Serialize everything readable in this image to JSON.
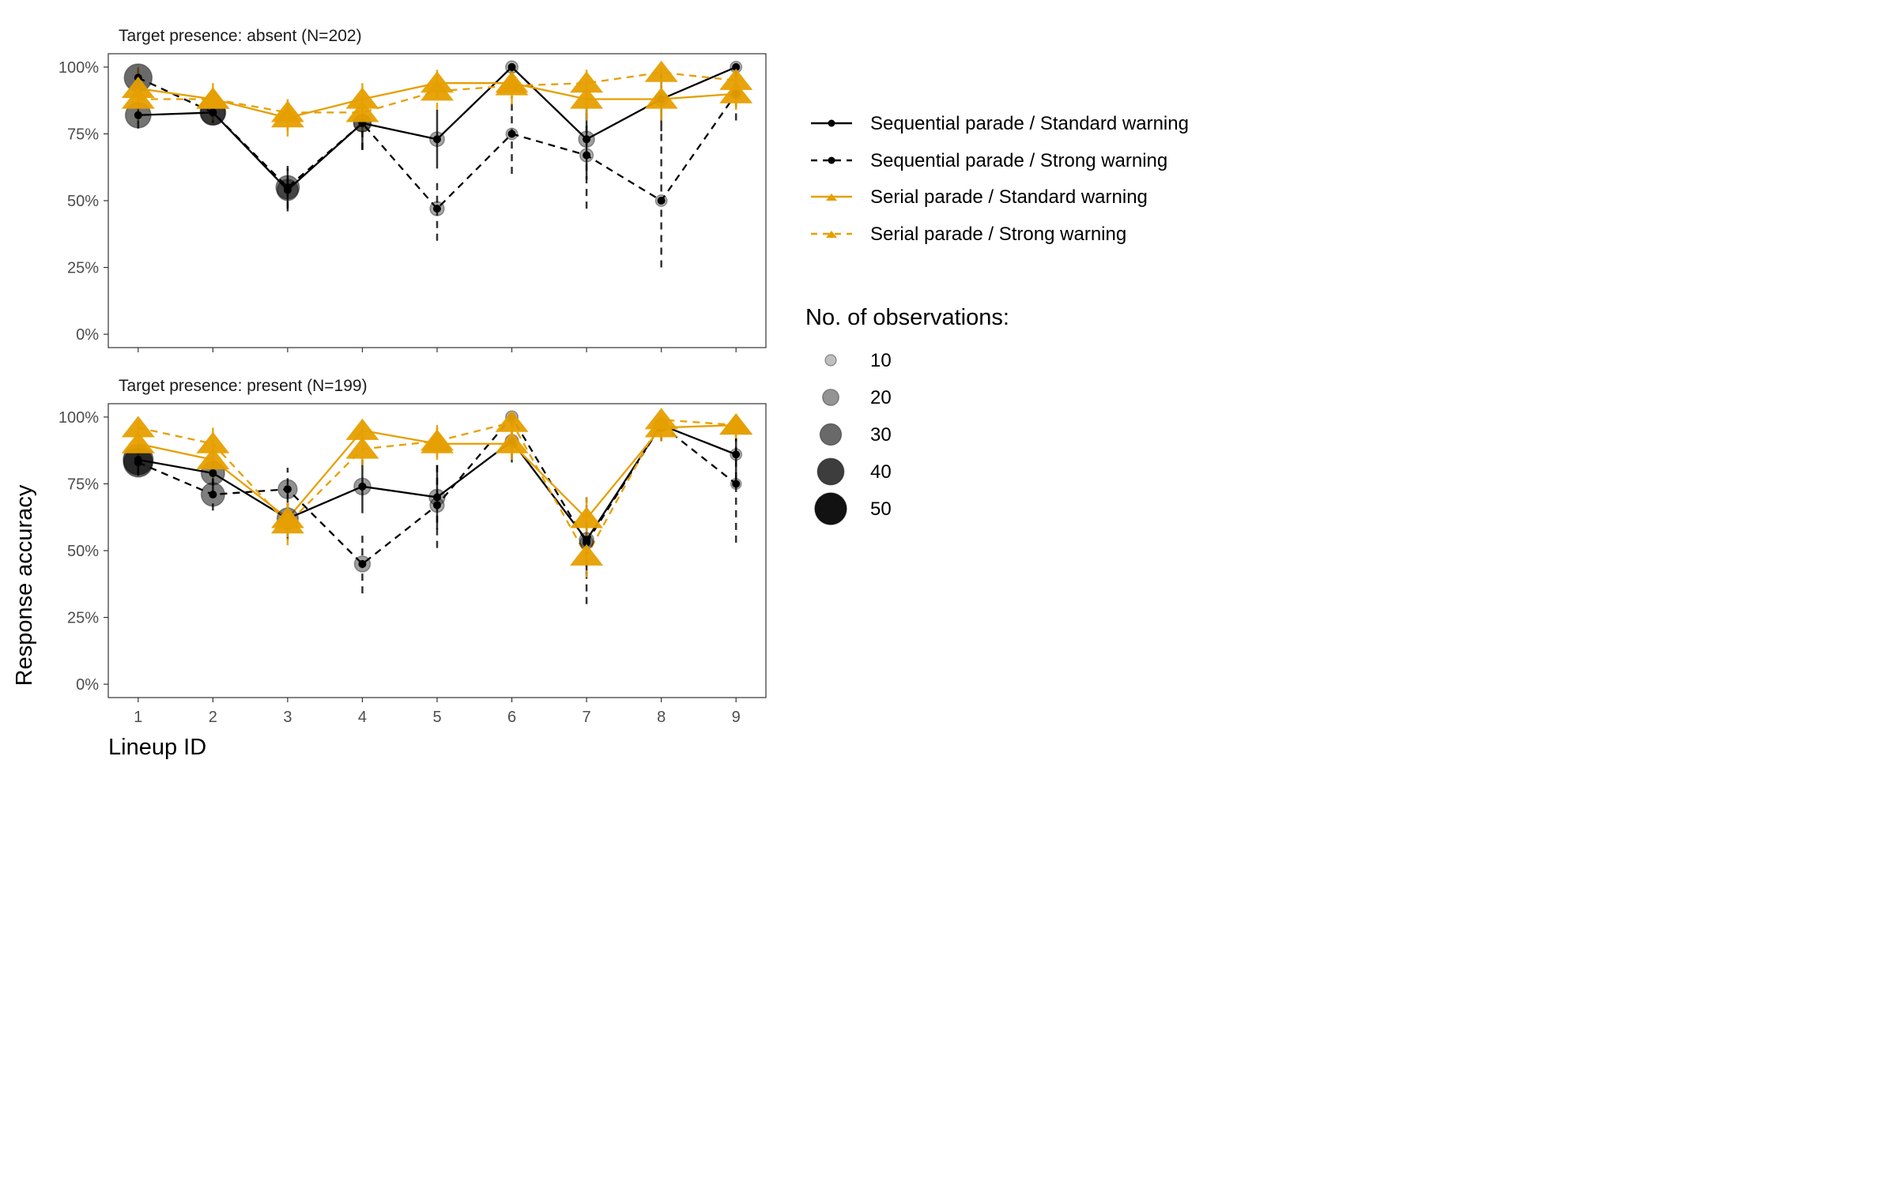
{
  "chart_data": {
    "type": "line",
    "ylabel": "Response accuracy",
    "xlabel": "Lineup ID",
    "x": [
      1,
      2,
      3,
      4,
      5,
      6,
      7,
      8,
      9
    ],
    "ylim": [
      0,
      1.05
    ],
    "yticks": [
      0,
      0.25,
      0.5,
      0.75,
      1.0
    ],
    "ytick_labels": [
      "0%",
      "25%",
      "50%",
      "75%",
      "100%"
    ],
    "xtick_labels": [
      "1",
      "2",
      "3",
      "4",
      "5",
      "6",
      "7",
      "8",
      "9"
    ],
    "grid": false,
    "colors": {
      "sequential": "#000000",
      "serial": "#E69F00"
    },
    "legend": {
      "placement": "right",
      "series_items": [
        {
          "label": "Sequential parade / Standard warning"
        },
        {
          "label": "Sequential parade / Strong warning"
        },
        {
          "label": "Serial parade / Standard warning"
        },
        {
          "label": "Serial parade / Strong warning"
        }
      ],
      "size_title": "No. of observations:",
      "size_items": [
        {
          "label": "10",
          "value": 10
        },
        {
          "label": "20",
          "value": 20
        },
        {
          "label": "30",
          "value": 30
        },
        {
          "label": "40",
          "value": 40
        },
        {
          "label": "50",
          "value": 50
        }
      ]
    },
    "panels": [
      {
        "title": "Target presence: absent (N=202)",
        "series": [
          {
            "name": "Sequential parade / Standard warning",
            "shape": "circle",
            "linestyle": "solid",
            "color": "#000000",
            "y": [
              0.82,
              0.83,
              0.54,
              0.79,
              0.73,
              1.0,
              0.73,
              0.88,
              1.0
            ],
            "n": [
              40,
              38,
              30,
              22,
              15,
              10,
              18,
              12,
              8
            ],
            "err": [
              [
                0.77,
                0.87
              ],
              [
                0.8,
                0.87
              ],
              [
                0.46,
                0.62
              ],
              [
                0.69,
                0.88
              ],
              [
                0.62,
                0.84
              ],
              [
                0.97,
                1.0
              ],
              [
                0.58,
                0.86
              ],
              [
                0.76,
                0.99
              ],
              [
                0.96,
                1.0
              ]
            ]
          },
          {
            "name": "Sequential parade / Strong warning",
            "shape": "circle",
            "linestyle": "dashed",
            "color": "#000000",
            "y": [
              0.96,
              0.83,
              0.55,
              0.79,
              0.47,
              0.75,
              0.67,
              0.5,
              0.9
            ],
            "n": [
              45,
              40,
              35,
              20,
              14,
              8,
              12,
              8,
              6
            ],
            "err": [
              [
                0.92,
                0.99
              ],
              [
                0.79,
                0.87
              ],
              [
                0.47,
                0.63
              ],
              [
                0.69,
                0.89
              ],
              [
                0.35,
                0.58
              ],
              [
                0.6,
                0.89
              ],
              [
                0.47,
                0.84
              ],
              [
                0.25,
                0.75
              ],
              [
                0.8,
                0.99
              ]
            ]
          },
          {
            "name": "Serial parade / Standard warning",
            "shape": "triangle",
            "linestyle": "solid",
            "color": "#E69F00",
            "y": [
              0.92,
              0.88,
              0.81,
              0.88,
              0.94,
              0.94,
              0.88,
              0.88,
              0.9
            ],
            "n": [
              50,
              50,
              50,
              50,
              50,
              50,
              50,
              50,
              50
            ],
            "err": [
              [
                0.84,
                1.0
              ],
              [
                0.8,
                0.94
              ],
              [
                0.74,
                0.86
              ],
              [
                0.8,
                0.94
              ],
              [
                0.88,
                0.99
              ],
              [
                0.88,
                0.99
              ],
              [
                0.8,
                0.94
              ],
              [
                0.8,
                0.94
              ],
              [
                0.84,
                0.96
              ]
            ]
          },
          {
            "name": "Serial parade / Strong warning",
            "shape": "triangle",
            "linestyle": "dashed",
            "color": "#E69F00",
            "y": [
              0.88,
              0.88,
              0.83,
              0.83,
              0.91,
              0.93,
              0.94,
              0.98,
              0.95
            ],
            "n": [
              50,
              50,
              50,
              50,
              50,
              50,
              50,
              50,
              50
            ],
            "err": [
              [
                0.8,
                0.94
              ],
              [
                0.8,
                0.94
              ],
              [
                0.76,
                0.88
              ],
              [
                0.76,
                0.88
              ],
              [
                0.84,
                0.96
              ],
              [
                0.86,
                0.98
              ],
              [
                0.88,
                0.99
              ],
              [
                0.93,
                1.0
              ],
              [
                0.89,
                1.0
              ]
            ]
          }
        ]
      },
      {
        "title": "Target presence: present (N=199)",
        "series": [
          {
            "name": "Sequential parade / Standard warning",
            "shape": "circle",
            "linestyle": "solid",
            "color": "#000000",
            "y": [
              0.84,
              0.79,
              0.62,
              0.74,
              0.7,
              0.91,
              0.54,
              0.97,
              0.86
            ],
            "n": [
              50,
              35,
              30,
              20,
              18,
              12,
              15,
              10,
              8
            ],
            "err": [
              [
                0.79,
                0.89
              ],
              [
                0.72,
                0.86
              ],
              [
                0.54,
                0.71
              ],
              [
                0.64,
                0.84
              ],
              [
                0.58,
                0.82
              ],
              [
                0.83,
                0.98
              ],
              [
                0.41,
                0.67
              ],
              [
                0.91,
                1.0
              ],
              [
                0.74,
                0.97
              ]
            ]
          },
          {
            "name": "Sequential parade / Strong warning",
            "shape": "circle",
            "linestyle": "dashed",
            "color": "#000000",
            "y": [
              0.83,
              0.71,
              0.73,
              0.45,
              0.67,
              1.0,
              0.53,
              0.97,
              0.75
            ],
            "n": [
              48,
              35,
              25,
              18,
              14,
              10,
              12,
              10,
              6
            ],
            "err": [
              [
                0.78,
                0.88
              ],
              [
                0.65,
                0.78
              ],
              [
                0.65,
                0.81
              ],
              [
                0.34,
                0.56
              ],
              [
                0.51,
                0.82
              ],
              [
                0.97,
                1.0
              ],
              [
                0.3,
                0.7
              ],
              [
                0.91,
                1.0
              ],
              [
                0.53,
                0.95
              ]
            ]
          },
          {
            "name": "Serial parade / Standard warning",
            "shape": "triangle",
            "linestyle": "solid",
            "color": "#E69F00",
            "y": [
              0.9,
              0.84,
              0.62,
              0.95,
              0.9,
              0.9,
              0.62,
              0.96,
              0.97
            ],
            "n": [
              50,
              50,
              50,
              50,
              50,
              50,
              50,
              50,
              50
            ],
            "err": [
              [
                0.84,
                0.96
              ],
              [
                0.77,
                0.9
              ],
              [
                0.55,
                0.68
              ],
              [
                0.9,
                0.99
              ],
              [
                0.84,
                0.96
              ],
              [
                0.84,
                0.96
              ],
              [
                0.55,
                0.7
              ],
              [
                0.91,
                1.0
              ],
              [
                0.92,
                1.0
              ]
            ]
          },
          {
            "name": "Serial parade / Strong warning",
            "shape": "triangle",
            "linestyle": "dashed",
            "color": "#E69F00",
            "y": [
              0.96,
              0.9,
              0.6,
              0.88,
              0.91,
              0.98,
              0.48,
              0.99,
              0.97
            ],
            "n": [
              50,
              50,
              50,
              50,
              50,
              50,
              50,
              50,
              50
            ],
            "err": [
              [
                0.91,
                1.0
              ],
              [
                0.84,
                0.96
              ],
              [
                0.52,
                0.68
              ],
              [
                0.82,
                0.94
              ],
              [
                0.85,
                0.97
              ],
              [
                0.94,
                1.0
              ],
              [
                0.4,
                0.56
              ],
              [
                0.95,
                1.0
              ],
              [
                0.92,
                1.0
              ]
            ]
          }
        ]
      }
    ]
  }
}
